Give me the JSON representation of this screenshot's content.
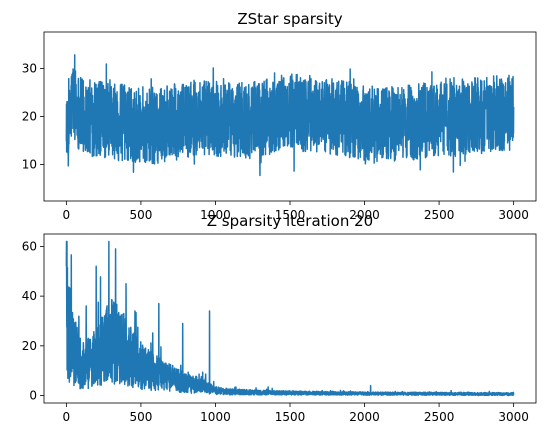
{
  "chart_data": [
    {
      "type": "line",
      "title": "ZStar sparsity",
      "xlabel": "",
      "ylabel": "",
      "xlim": [
        -150,
        3150
      ],
      "ylim": [
        2.4,
        37.6
      ],
      "xticks": [
        0,
        500,
        1000,
        1500,
        2000,
        2500,
        3000
      ],
      "yticks": [
        10,
        20,
        30
      ],
      "color": "#1f77b4",
      "series": [
        {
          "name": "ZStar sparsity",
          "n_points": 3000,
          "x_range": [
            0,
            3000
          ],
          "anchors_x": [
            0,
            5,
            40,
            100,
            300,
            600,
            900,
            1200,
            1500,
            1800,
            2100,
            2400,
            2700,
            3000
          ],
          "anchors_y": [
            22,
            14,
            24,
            20,
            19,
            18,
            20,
            19,
            21,
            20,
            18,
            19,
            20,
            21
          ],
          "noise_amplitude": 8,
          "y_min": 4,
          "y_max": 36
        }
      ]
    },
    {
      "type": "line",
      "title": "Z sparsity iteration 20",
      "xlabel": "",
      "ylabel": "",
      "xlim": [
        -150,
        3150
      ],
      "ylim": [
        -3,
        65
      ],
      "xticks": [
        0,
        500,
        1000,
        1500,
        2000,
        2500,
        3000
      ],
      "yticks": [
        0,
        20,
        40,
        60
      ],
      "color": "#1f77b4",
      "series": [
        {
          "name": "Z sparsity iteration 20",
          "n_points": 3000,
          "x_range": [
            0,
            3000
          ],
          "anchors_x": [
            0,
            10,
            50,
            100,
            200,
            300,
            400,
            500,
            600,
            700,
            800,
            900,
            950,
            1000,
            1100,
            1300,
            1600,
            2000,
            2500,
            3000
          ],
          "anchors_y": [
            45,
            28,
            18,
            12,
            15,
            22,
            18,
            12,
            9,
            7,
            5,
            4,
            3,
            2,
            1.5,
            1.2,
            1,
            0.8,
            0.7,
            0.6
          ],
          "noise_amplitude": 1,
          "peaks": [
            {
              "x": 0,
              "y": 52
            },
            {
              "x": 200,
              "y": 52
            },
            {
              "x": 285,
              "y": 62
            },
            {
              "x": 330,
              "y": 59
            },
            {
              "x": 400,
              "y": 45
            },
            {
              "x": 460,
              "y": 34
            },
            {
              "x": 620,
              "y": 37
            },
            {
              "x": 780,
              "y": 29
            },
            {
              "x": 960,
              "y": 34
            },
            {
              "x": 2040,
              "y": 4
            },
            {
              "x": 2580,
              "y": 2
            }
          ],
          "y_min": 0,
          "y_max": 62
        }
      ]
    }
  ]
}
